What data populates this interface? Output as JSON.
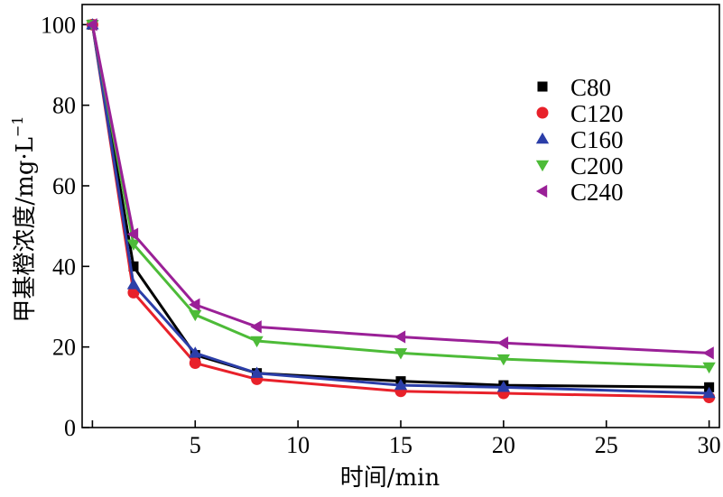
{
  "chart_data": {
    "type": "line",
    "title": "",
    "xlabel": "时间/min",
    "ylabel": "甲基橙浓度/mg·L",
    "ylabel_sup": "−1",
    "xlim": [
      -0.5,
      30.5
    ],
    "ylim": [
      0,
      105
    ],
    "xticks": [
      5,
      10,
      15,
      20,
      25,
      30
    ],
    "yticks": [
      0,
      20,
      40,
      60,
      80,
      100
    ],
    "legend_position": "top-right",
    "x": [
      0,
      2,
      5,
      8,
      15,
      20,
      30
    ],
    "series": [
      {
        "name": "C80",
        "marker": "square",
        "color": "#000000",
        "values": [
          100,
          40,
          18,
          13.5,
          11.5,
          10.5,
          10
        ]
      },
      {
        "name": "C120",
        "marker": "circle",
        "color": "#e8212a",
        "values": [
          100,
          33.5,
          16,
          12,
          9,
          8.5,
          7.5
        ]
      },
      {
        "name": "C160",
        "marker": "triangle-up",
        "color": "#2b3ea8",
        "values": [
          100,
          35.5,
          18.5,
          13.5,
          10.5,
          10,
          8.5
        ]
      },
      {
        "name": "C200",
        "marker": "triangle-down",
        "color": "#4dbb38",
        "values": [
          100,
          45.5,
          28,
          21.5,
          18.5,
          17,
          15
        ]
      },
      {
        "name": "C240",
        "marker": "triangle-left",
        "color": "#9a2097",
        "values": [
          100,
          48,
          30.5,
          25,
          22.5,
          21,
          18.5
        ]
      }
    ]
  }
}
